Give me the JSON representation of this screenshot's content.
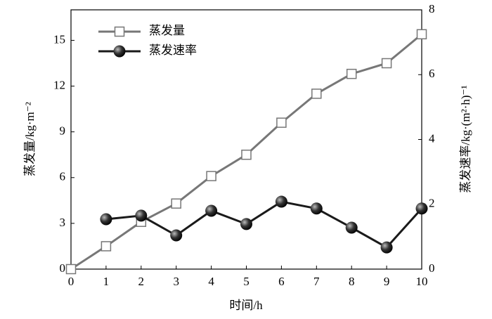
{
  "chart_data": {
    "type": "line",
    "x_label": "时间/h",
    "y_label": "蒸发量/kg·m⁻²",
    "y2_label": "蒸发速率/kg·(m²·h)⁻¹",
    "x": [
      0,
      1,
      2,
      3,
      4,
      5,
      6,
      7,
      8,
      9,
      10
    ],
    "xlim": [
      0,
      10
    ],
    "xticks": [
      0,
      1,
      2,
      3,
      4,
      5,
      6,
      7,
      8,
      9,
      10
    ],
    "ylim": [
      0,
      17
    ],
    "yticks": [
      0,
      3,
      6,
      9,
      12,
      15
    ],
    "y2lim": [
      0,
      8
    ],
    "y2ticks": [
      0,
      2,
      4,
      6,
      8
    ],
    "legend": "upper left",
    "series": [
      {
        "name": "蒸发量",
        "color": "#777777",
        "marker": "square",
        "values": [
          0,
          1.5,
          3.1,
          4.3,
          6.1,
          7.5,
          9.6,
          11.5,
          12.8,
          13.5,
          15.4
        ]
      },
      {
        "name": "蒸发速率",
        "color": "#1a1a1a",
        "marker": "circle",
        "axis": "y2",
        "values": [
          null,
          1.54,
          1.65,
          1.04,
          1.8,
          1.39,
          2.08,
          1.87,
          1.28,
          0.67,
          1.87
        ]
      }
    ]
  }
}
